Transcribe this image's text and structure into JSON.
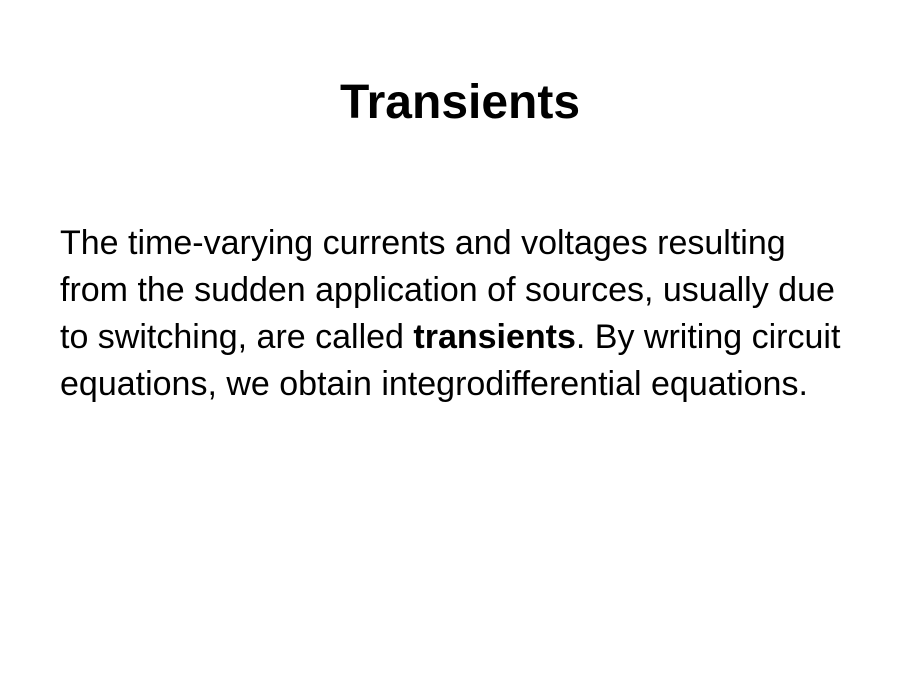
{
  "slide": {
    "title": "Transients",
    "body_pre": "The time-varying currents and voltages resulting from the sudden application of sources, usually due to switching, are called ",
    "body_bold": "transients",
    "body_post": ". By writing circuit equations, we obtain integrodifferential equations."
  },
  "style": {
    "background_color": "#ffffff",
    "text_color": "#000000",
    "title_fontsize": 48,
    "body_fontsize": 34,
    "font_family": "Arial"
  }
}
